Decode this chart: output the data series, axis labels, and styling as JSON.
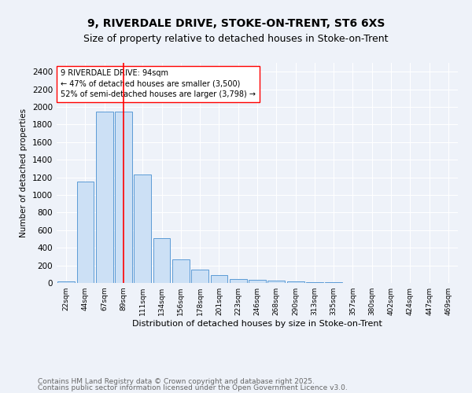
{
  "title1": "9, RIVERDALE DRIVE, STOKE-ON-TRENT, ST6 6XS",
  "title2": "Size of property relative to detached houses in Stoke-on-Trent",
  "xlabel": "Distribution of detached houses by size in Stoke-on-Trent",
  "ylabel": "Number of detached properties",
  "categories": [
    "22sqm",
    "44sqm",
    "67sqm",
    "89sqm",
    "111sqm",
    "134sqm",
    "156sqm",
    "178sqm",
    "201sqm",
    "223sqm",
    "246sqm",
    "268sqm",
    "290sqm",
    "313sqm",
    "335sqm",
    "357sqm",
    "380sqm",
    "402sqm",
    "424sqm",
    "447sqm",
    "469sqm"
  ],
  "bar_values": [
    20,
    1150,
    1950,
    1950,
    1230,
    510,
    270,
    155,
    90,
    45,
    35,
    30,
    15,
    8,
    5,
    3,
    2,
    2,
    1,
    1,
    0
  ],
  "bar_color": "#cce0f5",
  "bar_edge_color": "#5b9bd5",
  "red_line_index": 3,
  "annotation_line1": "9 RIVERDALE DRIVE: 94sqm",
  "annotation_line2": "← 47% of detached houses are smaller (3,500)",
  "annotation_line3": "52% of semi-detached houses are larger (3,798) →",
  "ylim": [
    0,
    2500
  ],
  "yticks": [
    0,
    200,
    400,
    600,
    800,
    1000,
    1200,
    1400,
    1600,
    1800,
    2000,
    2200,
    2400
  ],
  "footer1": "Contains HM Land Registry data © Crown copyright and database right 2025.",
  "footer2": "Contains public sector information licensed under the Open Government Licence v3.0.",
  "bg_color": "#eef2f9",
  "grid_color": "#ffffff",
  "title1_fontsize": 10,
  "title2_fontsize": 9,
  "annotation_fontsize": 7,
  "footer_fontsize": 6.5,
  "xlabel_fontsize": 8,
  "ylabel_fontsize": 7.5,
  "tick_fontsize": 6.5,
  "ytick_fontsize": 7.5
}
